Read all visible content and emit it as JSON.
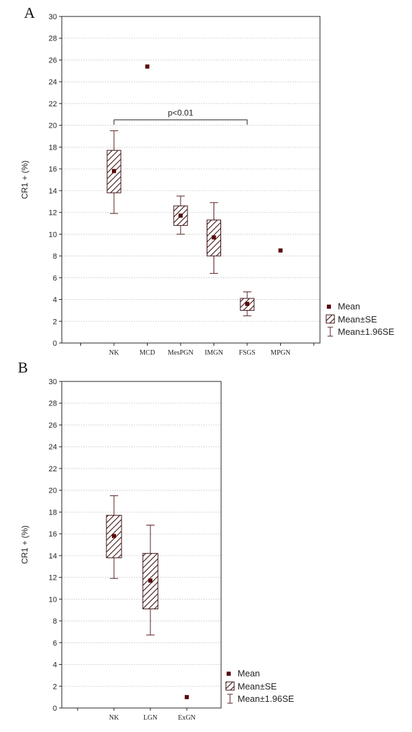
{
  "chart_data": [
    {
      "type": "box",
      "panel_label": "A",
      "ylabel": "CR1 + (%)",
      "ylim": [
        0,
        30
      ],
      "yticks": [
        0,
        2,
        4,
        6,
        8,
        10,
        12,
        14,
        16,
        18,
        20,
        22,
        24,
        26,
        28,
        30
      ],
      "grid": "horizontal dotted",
      "categories": [
        "NK",
        "MCD",
        "MesPGN",
        "IMGN",
        "FSGS",
        "MPGN"
      ],
      "series": [
        {
          "category": "NK",
          "mean": 15.8,
          "se_low": 13.8,
          "se_high": 17.7,
          "ci_low": 11.9,
          "ci_high": 19.5
        },
        {
          "category": "MCD",
          "mean": 25.4
        },
        {
          "category": "MesPGN",
          "mean": 11.7,
          "se_low": 10.8,
          "se_high": 12.6,
          "ci_low": 10.0,
          "ci_high": 13.5
        },
        {
          "category": "IMGN",
          "mean": 9.7,
          "se_low": 8.0,
          "se_high": 11.3,
          "ci_low": 6.4,
          "ci_high": 12.9
        },
        {
          "category": "FSGS",
          "mean": 3.6,
          "se_low": 3.0,
          "se_high": 4.1,
          "ci_low": 2.5,
          "ci_high": 4.7
        },
        {
          "category": "MPGN",
          "mean": 8.5
        }
      ],
      "annotation": {
        "text": "p<0.01",
        "from": "NK",
        "to": "FSGS",
        "y": 20.5
      },
      "legend": {
        "placement": "right-bottom",
        "items": [
          "Mean",
          "Mean±SE",
          "Mean±1.96SE"
        ]
      }
    },
    {
      "type": "box",
      "panel_label": "B",
      "ylabel": "CR1 + (%)",
      "ylim": [
        0,
        30
      ],
      "yticks": [
        0,
        2,
        4,
        6,
        8,
        10,
        12,
        14,
        16,
        18,
        20,
        22,
        24,
        26,
        28,
        30
      ],
      "grid": "horizontal dotted",
      "categories": [
        "NK",
        "LGN",
        "ExGN"
      ],
      "series": [
        {
          "category": "NK",
          "mean": 15.8,
          "se_low": 13.8,
          "se_high": 17.7,
          "ci_low": 11.9,
          "ci_high": 19.5
        },
        {
          "category": "LGN",
          "mean": 11.7,
          "se_low": 9.1,
          "se_high": 14.2,
          "ci_low": 6.7,
          "ci_high": 16.8
        },
        {
          "category": "ExGN",
          "mean": 1.0
        }
      ],
      "legend": {
        "placement": "right-bottom",
        "items": [
          "Mean",
          "Mean±SE",
          "Mean±1.96SE"
        ]
      }
    }
  ],
  "colors": {
    "mean_marker": "#5a0a0a",
    "box_stroke": "#3a1010",
    "whisker": "#5a2020",
    "grid": "#bbbbbb",
    "frame": "#222222"
  }
}
